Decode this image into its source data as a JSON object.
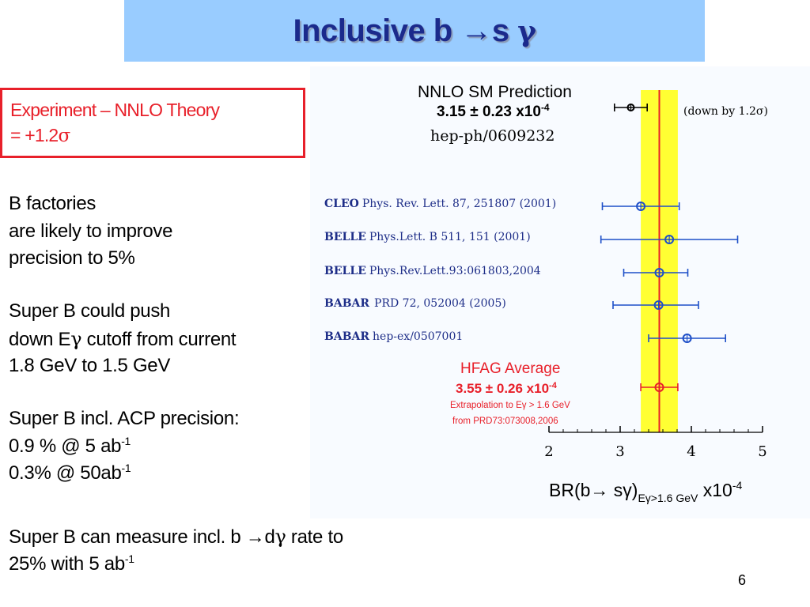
{
  "title": {
    "main": "Inclusive b →s ",
    "gamma": "γ"
  },
  "result": {
    "line1": "Experiment – NNLO Theory",
    "line2_prefix": "= +1.2",
    "line2_sigma": "σ"
  },
  "bullets": {
    "factories": [
      "B factories",
      "are likely to improve",
      "precision to 5%"
    ],
    "push": {
      "l1": "Super B could push",
      "l2_a": "down E",
      "l2_gamma": "γ",
      "l2_b": " cutoff from current",
      "l3": "1.8 GeV to 1.5 GeV"
    },
    "acp": {
      "l1": "Super B incl. ACP precision:",
      "l2": "0.9 % @ 5 ab",
      "l2_sup": "-1",
      "l3": "0.3% @ 50ab",
      "l3_sup": "-1"
    },
    "dgamma": {
      "l1_a": "Super B can measure incl. b →d",
      "l1_gamma": "γ",
      "l1_b": " rate to",
      "l2": "25% with 5 ab",
      "l2_sup": "-1"
    }
  },
  "page_number": "6",
  "chart_data": {
    "type": "scatter",
    "xlim": [
      2,
      5
    ],
    "x_ticks": [
      "2",
      "3",
      "4",
      "5"
    ],
    "xlabel": {
      "main": "BR(b",
      "arrow": "→",
      "s": " sγ)",
      "sub": "Eγ>1.6 GeV",
      "scale": " x10",
      "scale_sup": "-4"
    },
    "theory": {
      "header": "NNLO SM Prediction",
      "value": "3.15 ± 0.23 x10",
      "value_sup": "-4",
      "ref": "hep-ph/0609232",
      "note": "(down by  1.2σ)",
      "x": 3.15,
      "err": 0.23
    },
    "measurements": [
      {
        "exp": "CLEO",
        "ref": "Phys. Rev. Lett. 87, 251807 (2001)",
        "x": 3.29,
        "lo": 2.75,
        "hi": 3.83
      },
      {
        "exp": "BELLE",
        "ref": "Phys.Lett. B 511, 151 (2001)",
        "x": 3.69,
        "lo": 2.73,
        "hi": 4.65
      },
      {
        "exp": "BELLE",
        "ref": "Phys.Rev.Lett.93:061803,2004",
        "x": 3.55,
        "lo": 3.05,
        "hi": 3.95
      },
      {
        "exp": "BABAR",
        "ref": "PRD 72, 052004 (2005)",
        "x": 3.54,
        "lo": 2.9,
        "hi": 4.1
      },
      {
        "exp": "BABAR",
        "ref": "hep-ex/0507001",
        "x": 3.94,
        "lo": 3.4,
        "hi": 4.48
      }
    ],
    "average": {
      "header": "HFAG Average",
      "value": "3.55 ± 0.26 x10",
      "value_sup": "-4",
      "note1": "Extrapolation to Eγ > 1.6 GeV",
      "note2": "from PRD73:073008,2006",
      "x": 3.55,
      "err": 0.26,
      "band": [
        3.29,
        3.81
      ]
    },
    "colors": {
      "band": "#ffff33",
      "avg_line": "#e8202a",
      "measurement": "#1e4fc8",
      "experiment_text": "#1e2e88",
      "title_text": "#1b2a8c"
    }
  }
}
